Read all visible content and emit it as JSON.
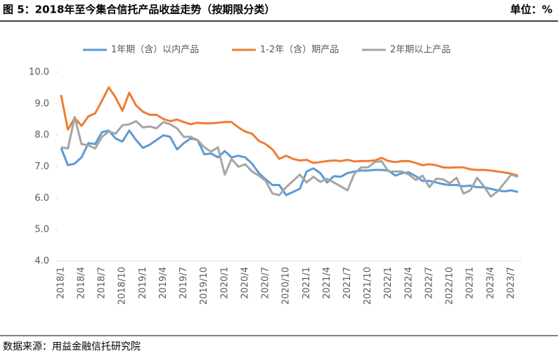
{
  "header": {
    "title": "图 5：2018年至今集合信托产品收益走势（按期限分类）",
    "unit": "单位：%"
  },
  "chart_data": {
    "type": "line",
    "categories": [
      "2018/1",
      null,
      null,
      "2018/4",
      null,
      null,
      "2018/7",
      null,
      null,
      "2018/10",
      null,
      null,
      "2019/1",
      null,
      null,
      "2019/4",
      null,
      null,
      "2019/7",
      null,
      null,
      "2019/10",
      null,
      null,
      "2020/1",
      null,
      null,
      "2020/4",
      null,
      null,
      "2020/7",
      null,
      null,
      "2020/10",
      null,
      null,
      "2021/1",
      null,
      null,
      "2021/4",
      null,
      null,
      "2021/7",
      null,
      null,
      "2021/10",
      null,
      null,
      "2022/1",
      null,
      null,
      "2022/4",
      null,
      null,
      "2022/7",
      null,
      null,
      "2022/10",
      null,
      null,
      "2023/1",
      null,
      null,
      "2023/4",
      null,
      null,
      "2023/7",
      null
    ],
    "series": [
      {
        "name": "1年期（含）以内产品",
        "color": "#5b9bd5",
        "values": [
          7.6,
          7.05,
          7.1,
          7.3,
          7.75,
          7.72,
          8.1,
          8.15,
          7.9,
          7.8,
          8.15,
          7.85,
          7.6,
          7.7,
          7.85,
          8.0,
          7.95,
          7.55,
          7.75,
          7.9,
          7.85,
          7.4,
          7.42,
          7.3,
          7.5,
          7.3,
          7.35,
          7.3,
          7.1,
          6.8,
          6.6,
          6.42,
          6.42,
          6.1,
          6.2,
          6.3,
          6.85,
          6.95,
          6.8,
          6.5,
          6.7,
          6.68,
          6.8,
          6.85,
          6.88,
          6.88,
          6.9,
          6.9,
          6.88,
          6.72,
          6.8,
          6.82,
          6.7,
          6.55,
          6.55,
          6.5,
          6.45,
          6.42,
          6.42,
          6.38,
          6.4,
          6.35,
          6.35,
          6.3,
          6.25,
          6.22,
          6.25,
          6.2
        ]
      },
      {
        "name": "1-2年（含）期产品",
        "color": "#ed7d31",
        "values": [
          9.28,
          8.18,
          8.55,
          8.3,
          8.6,
          8.7,
          9.1,
          9.52,
          9.2,
          8.78,
          9.35,
          8.95,
          8.75,
          8.65,
          8.65,
          8.52,
          8.45,
          8.5,
          8.42,
          8.35,
          8.4,
          8.38,
          8.38,
          8.4,
          8.42,
          8.42,
          8.25,
          8.12,
          8.05,
          7.82,
          7.72,
          7.55,
          7.25,
          7.35,
          7.25,
          7.2,
          7.22,
          7.12,
          7.15,
          7.18,
          7.2,
          7.18,
          7.22,
          7.17,
          7.18,
          7.18,
          7.2,
          7.28,
          7.18,
          7.15,
          7.18,
          7.18,
          7.12,
          7.05,
          7.08,
          7.05,
          6.98,
          6.97,
          6.98,
          6.98,
          6.92,
          6.9,
          6.9,
          6.88,
          6.85,
          6.82,
          6.78,
          6.72
        ]
      },
      {
        "name": "2年期以上产品",
        "color": "#a5a5a5",
        "values": [
          7.62,
          7.58,
          8.58,
          7.72,
          7.68,
          7.58,
          7.95,
          8.12,
          8.05,
          8.32,
          8.35,
          8.45,
          8.25,
          8.28,
          8.22,
          8.42,
          8.35,
          8.22,
          7.95,
          7.95,
          7.85,
          7.62,
          7.48,
          7.62,
          6.75,
          7.25,
          7.0,
          7.08,
          6.85,
          6.72,
          6.55,
          6.15,
          6.1,
          6.35,
          6.55,
          6.75,
          6.5,
          6.68,
          6.52,
          6.62,
          6.5,
          6.38,
          6.25,
          6.78,
          6.98,
          6.98,
          7.15,
          7.18,
          6.85,
          6.85,
          6.85,
          6.75,
          6.58,
          6.72,
          6.35,
          6.62,
          6.6,
          6.48,
          6.65,
          6.15,
          6.25,
          6.65,
          6.38,
          6.05,
          6.22,
          6.48,
          6.75,
          6.68
        ]
      }
    ],
    "ylim": [
      4,
      10
    ],
    "yticks": [
      {
        "value": 4,
        "label": "4.0"
      },
      {
        "value": 5,
        "label": "5.0"
      },
      {
        "value": 6,
        "label": "6.0"
      },
      {
        "value": 7,
        "label": "7.0"
      },
      {
        "value": 8,
        "label": "8.0"
      },
      {
        "value": 9,
        "label": "9.0"
      },
      {
        "value": 10,
        "label": "10.0"
      }
    ],
    "grid": false,
    "legend": "top"
  },
  "footer": {
    "source": "数据来源：用益金融信托研究院"
  }
}
